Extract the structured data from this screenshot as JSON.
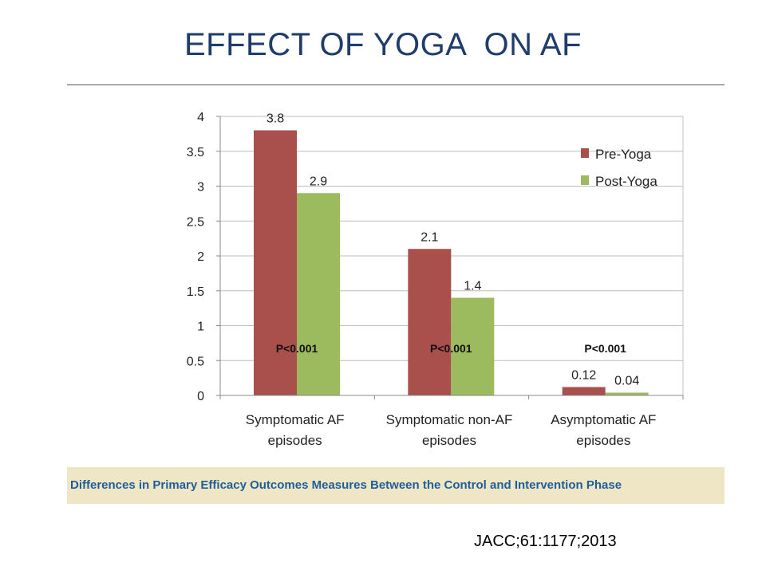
{
  "slide": {
    "title": "EFFECT OF YOGA  ON AF",
    "caption": "Differences in Primary Efficacy Outcomes Measures Between the Control and Intervention Phase",
    "citation": "JACC;61:1177;2013"
  },
  "chart_data": {
    "type": "bar",
    "title": "",
    "xlabel": "",
    "ylabel": "",
    "ylim": [
      0,
      4
    ],
    "yticks": [
      "0",
      "0.5",
      "1",
      "1.5",
      "2",
      "2.5",
      "3",
      "3.5",
      "4"
    ],
    "grid": true,
    "legend_position": "top-right",
    "categories": [
      [
        "Symptomatic AF",
        "episodes"
      ],
      [
        "Symptomatic non-AF",
        "episodes"
      ],
      [
        "Asymptomatic AF",
        "episodes"
      ]
    ],
    "series": [
      {
        "name": "Pre-Yoga",
        "color": "#a94f4c",
        "values": [
          3.8,
          2.1,
          0.12
        ],
        "labels": [
          "3.8",
          "2.1",
          "0.12"
        ]
      },
      {
        "name": "Post-Yoga",
        "color": "#9cbb5e",
        "values": [
          2.9,
          1.4,
          0.04
        ],
        "labels": [
          "2.9",
          "1.4",
          "0.04"
        ]
      }
    ],
    "annotations": [
      "P<0.001",
      "P<0.001",
      "P<0.001"
    ]
  }
}
